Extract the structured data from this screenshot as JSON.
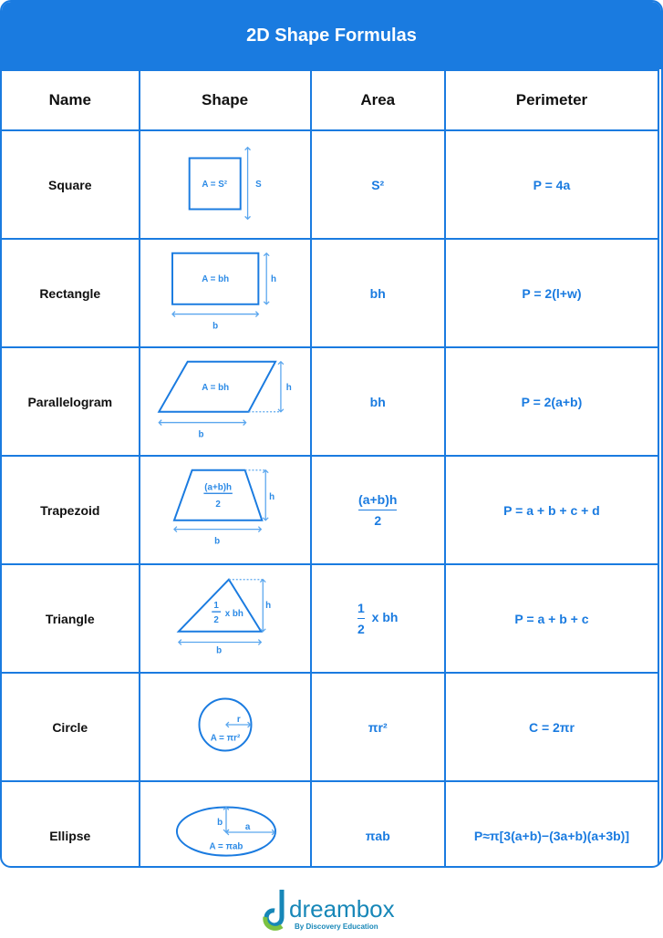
{
  "title": "2D Shape Formulas",
  "headers": {
    "name": "Name",
    "shape": "Shape",
    "area": "Area",
    "perimeter": "Perimeter"
  },
  "rows": [
    {
      "name": "Square",
      "area": "S²",
      "perimeter": "P = 4a",
      "diagram": {
        "formula": "A = S²",
        "side": "S"
      }
    },
    {
      "name": "Rectangle",
      "area": "bh",
      "perimeter": "P = 2(l+w)",
      "diagram": {
        "formula": "A = bh",
        "h": "h",
        "b": "b"
      }
    },
    {
      "name": "Parallelogram",
      "area": "bh",
      "perimeter": "P = 2(a+b)",
      "diagram": {
        "formula": "A = bh",
        "h": "h",
        "b": "b"
      }
    },
    {
      "name": "Trapezoid",
      "area_num": "(a+b)h",
      "area_den": "2",
      "perimeter": "P = a + b + c + d",
      "diagram": {
        "num": "(a+b)h",
        "den": "2",
        "h": "h",
        "b": "b"
      }
    },
    {
      "name": "Triangle",
      "area_num": "1",
      "area_den": "2",
      "area_rest": "x bh",
      "perimeter": "P = a + b + c",
      "diagram": {
        "num": "1",
        "den": "2",
        "rest": "x bh",
        "h": "h",
        "b": "b"
      }
    },
    {
      "name": "Circle",
      "area": "πr²",
      "perimeter": "C = 2πr",
      "diagram": {
        "formula": "A = πr²",
        "r": "r"
      }
    },
    {
      "name": "Ellipse",
      "area": "πab",
      "perimeter": "P≈π[3(a+b)−(3a+b)(a+3b)]",
      "diagram": {
        "formula": "A = πab",
        "a": "a",
        "b": "b"
      }
    }
  ],
  "logo": {
    "brand": "dreambox",
    "tagline": "By Discovery Education"
  },
  "colors": {
    "accent": "#1a7be0",
    "diagram": "#2b8ae6",
    "logo_blue": "#1787b8",
    "logo_green": "#7cc242"
  }
}
